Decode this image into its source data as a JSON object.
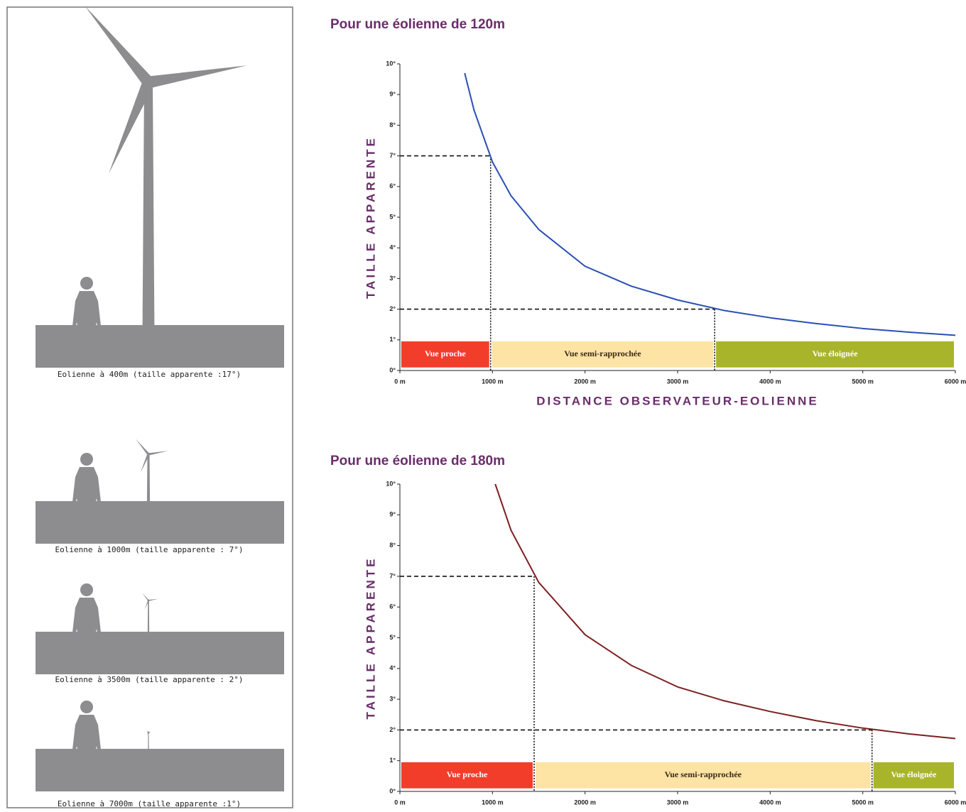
{
  "illustrations": {
    "captions": [
      "Eolienne à 400m (taille apparente :17°)",
      "Eolienne à 1000m (taille apparente : 7°)",
      "Eolienne à 3500m (taille apparente : 2°)",
      "Eolienne à 7000m (taille apparente :1°)"
    ]
  },
  "chart_data": [
    {
      "type": "line",
      "title": "Pour une éolienne de 120m",
      "y_label": "TAILLE APPARENTE",
      "x_label": "DISTANCE OBSERVATEUR-EOLIENNE",
      "x": [
        700,
        800,
        1000,
        1200,
        1500,
        2000,
        2500,
        3000,
        3500,
        4000,
        4500,
        5000,
        5500,
        6000
      ],
      "values": [
        9.7,
        8.5,
        6.8,
        5.7,
        4.6,
        3.4,
        2.75,
        2.3,
        1.96,
        1.72,
        1.53,
        1.37,
        1.25,
        1.15
      ],
      "color": "#2a4fb3",
      "xlim": [
        0,
        6000
      ],
      "ylim": [
        0,
        10
      ],
      "xticks": [
        {
          "value": 0,
          "label": "0 m"
        },
        {
          "value": 1000,
          "label": "1000 m"
        },
        {
          "value": 2000,
          "label": "2000 m"
        },
        {
          "value": 3000,
          "label": "3000 m"
        },
        {
          "value": 4000,
          "label": "4000 m"
        },
        {
          "value": 5000,
          "label": "5000 m"
        },
        {
          "value": 6000,
          "label": "6000 m"
        }
      ],
      "yticks": [
        {
          "value": 0,
          "label": "0°"
        },
        {
          "value": 1,
          "label": "1°"
        },
        {
          "value": 2,
          "label": "2°"
        },
        {
          "value": 3,
          "label": "3°"
        },
        {
          "value": 4,
          "label": "4°"
        },
        {
          "value": 5,
          "label": "5°"
        },
        {
          "value": 6,
          "label": "6°"
        },
        {
          "value": 7,
          "label": "7°"
        },
        {
          "value": 8,
          "label": "8°"
        },
        {
          "value": 9,
          "label": "9°"
        },
        {
          "value": 10,
          "label": "10°"
        }
      ],
      "reference_points": [
        {
          "x": 980,
          "y": 7
        },
        {
          "x": 3400,
          "y": 2
        }
      ],
      "zones": [
        {
          "label": "Vue proche",
          "start": 0,
          "end": 980,
          "color": "#f23d2a",
          "text_color": "#ffffff"
        },
        {
          "label": "Vue semi-rapprochée",
          "start": 980,
          "end": 3400,
          "color": "#fde3a4",
          "text_color": "#3a2a1a"
        },
        {
          "label": "Vue éloignée",
          "start": 3400,
          "end": 6000,
          "color": "#a8b52a",
          "text_color": "#ffffff"
        }
      ]
    },
    {
      "type": "line",
      "title": "Pour une éolienne de 180m",
      "y_label": "TAILLE APPARENTE",
      "x": [
        1030,
        1200,
        1500,
        2000,
        2500,
        3000,
        3500,
        4000,
        4500,
        5000,
        5500,
        6000
      ],
      "values": [
        10,
        8.5,
        6.8,
        5.1,
        4.1,
        3.4,
        2.95,
        2.6,
        2.3,
        2.06,
        1.87,
        1.72
      ],
      "color": "#7d1f1f",
      "xlim": [
        0,
        6000
      ],
      "ylim": [
        0,
        10
      ],
      "xticks": [
        {
          "value": 0,
          "label": "0 m"
        },
        {
          "value": 1000,
          "label": "1000 m"
        },
        {
          "value": 2000,
          "label": "2000 m"
        },
        {
          "value": 3000,
          "label": "3000 m"
        },
        {
          "value": 4000,
          "label": "4000 m"
        },
        {
          "value": 5000,
          "label": "5000 m"
        },
        {
          "value": 6000,
          "label": "6000 m"
        }
      ],
      "yticks": [
        {
          "value": 0,
          "label": "0°"
        },
        {
          "value": 1,
          "label": "1°"
        },
        {
          "value": 2,
          "label": "2°"
        },
        {
          "value": 3,
          "label": "3°"
        },
        {
          "value": 4,
          "label": "4°"
        },
        {
          "value": 5,
          "label": "5°"
        },
        {
          "value": 6,
          "label": "6°"
        },
        {
          "value": 7,
          "label": "7°"
        },
        {
          "value": 8,
          "label": "8°"
        },
        {
          "value": 9,
          "label": "9°"
        },
        {
          "value": 10,
          "label": "10°"
        }
      ],
      "reference_points": [
        {
          "x": 1450,
          "y": 7
        },
        {
          "x": 5100,
          "y": 2
        }
      ],
      "zones": [
        {
          "label": "Vue proche",
          "start": 0,
          "end": 1450,
          "color": "#f23d2a",
          "text_color": "#ffffff"
        },
        {
          "label": "Vue semi-rapprochée",
          "start": 1450,
          "end": 5100,
          "color": "#fde3a4",
          "text_color": "#3a2a1a"
        },
        {
          "label": "Vue éloignée",
          "start": 5100,
          "end": 6000,
          "color": "#a8b52a",
          "text_color": "#ffffff"
        }
      ]
    }
  ]
}
